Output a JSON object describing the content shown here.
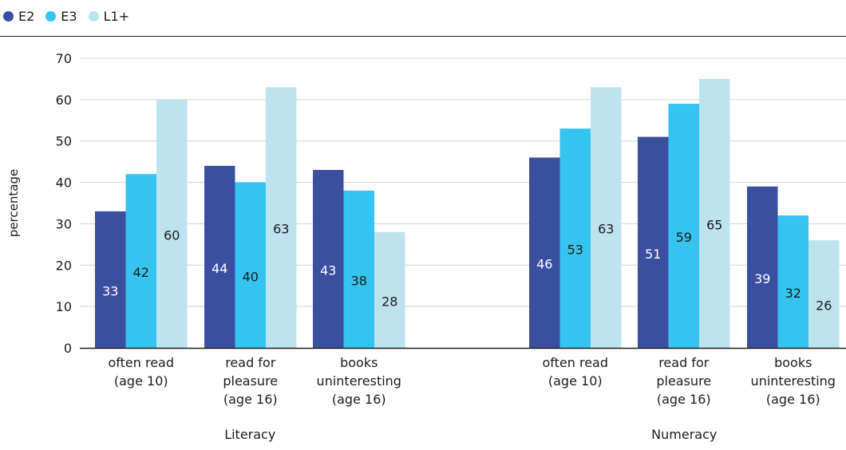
{
  "chart_data": {
    "type": "bar",
    "ylabel": "percentage",
    "ylim": [
      0,
      70
    ],
    "yticks": [
      0,
      10,
      20,
      30,
      40,
      50,
      60,
      70
    ],
    "grid": true,
    "legend_position": "top-left",
    "series_names": [
      "E2",
      "E3",
      "L1+"
    ],
    "colors": [
      "#3a4fa0",
      "#35c4ef",
      "#bde3ee"
    ],
    "label_colors": [
      "#ffffff",
      "#1b1b1b",
      "#1b1b1b"
    ],
    "groups": [
      {
        "name": "Literacy",
        "categories": [
          {
            "label": [
              "often read",
              "(age 10)"
            ],
            "values": [
              33,
              42,
              60
            ]
          },
          {
            "label": [
              "read for",
              "pleasure",
              "(age 16)"
            ],
            "values": [
              44,
              40,
              63
            ]
          },
          {
            "label": [
              "books",
              "uninteresting",
              "(age 16)"
            ],
            "values": [
              43,
              38,
              28
            ]
          }
        ]
      },
      {
        "name": "Numeracy",
        "categories": [
          {
            "label": [
              "often read",
              "(age 10)"
            ],
            "values": [
              46,
              53,
              63
            ]
          },
          {
            "label": [
              "read for",
              "pleasure",
              "(age 16)"
            ],
            "values": [
              51,
              59,
              65
            ]
          },
          {
            "label": [
              "books",
              "uninteresting",
              "(age 16)"
            ],
            "values": [
              39,
              32,
              26
            ]
          }
        ]
      }
    ]
  }
}
